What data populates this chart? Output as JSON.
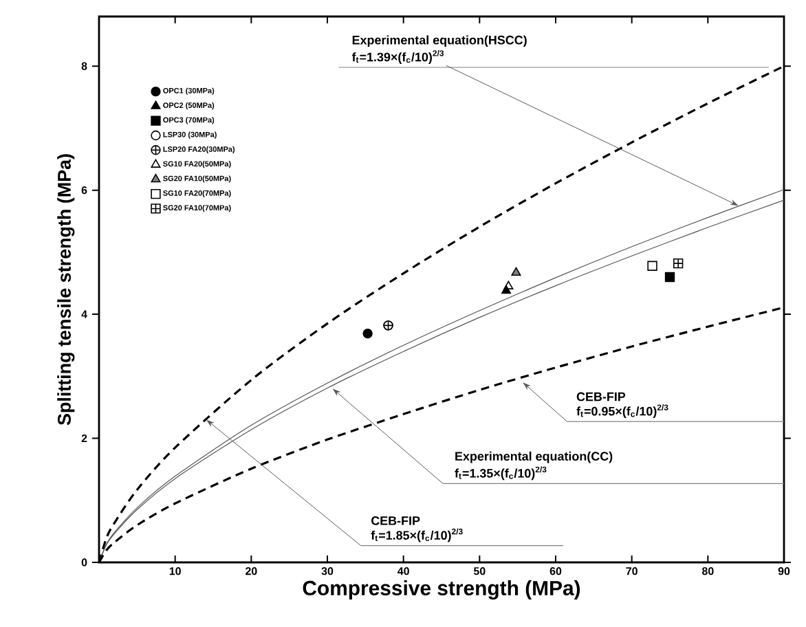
{
  "chart_data": {
    "type": "scatter",
    "xlabel": "Compressive strength (MPa)",
    "ylabel": "Splitting tensile strength (MPa)",
    "xlim": [
      0,
      90
    ],
    "ylim": [
      0,
      8.8
    ],
    "xticks": [
      10,
      20,
      30,
      40,
      50,
      60,
      70,
      80,
      90
    ],
    "yticks": [
      0,
      2,
      4,
      6,
      8
    ],
    "legend": "top left",
    "grid": false,
    "series": [
      {
        "name": "OPC1 (30MPa)",
        "type": "scatter",
        "marker": "circle",
        "color": "#000000",
        "x": [
          35.3
        ],
        "values": [
          3.69
        ]
      },
      {
        "name": "OPC2 (50MPa)",
        "type": "scatter",
        "marker": "triangle",
        "color": "#000000",
        "x": [
          53.5
        ],
        "values": [
          4.38
        ]
      },
      {
        "name": "OPC3 (70MPa)",
        "type": "scatter",
        "marker": "square",
        "color": "#000000",
        "x": [
          75.0
        ],
        "values": [
          4.6
        ]
      },
      {
        "name": "LSP30 (30MPa)",
        "type": "scatter",
        "marker": "circle-open",
        "color": "#000000",
        "x": [
          38.0
        ],
        "values": [
          3.82
        ]
      },
      {
        "name": "LSP20 FA20(30MPa)",
        "type": "scatter",
        "marker": "cross",
        "color": "#000000",
        "x": [
          38.0
        ],
        "values": [
          3.82
        ]
      },
      {
        "name": "SG10 FA20(50MPa)",
        "type": "scatter",
        "marker": "triangle-open",
        "color": "#000000",
        "x": [
          53.8
        ],
        "values": [
          4.45
        ]
      },
      {
        "name": "SG20 FA10(50MPa)",
        "type": "scatter",
        "marker": "triangle-half",
        "color": "#000000",
        "x": [
          54.8
        ],
        "values": [
          4.67
        ]
      },
      {
        "name": "SG10 FA20(70MPa)",
        "type": "scatter",
        "marker": "square-open",
        "color": "#000000",
        "x": [
          72.7
        ],
        "values": [
          4.78
        ]
      },
      {
        "name": "SG20 FA10(70MPa)",
        "type": "scatter",
        "marker": "cross-square",
        "color": "#000000",
        "x": [
          76.1
        ],
        "values": [
          4.82
        ]
      },
      {
        "type": "line",
        "line_style": "dashed",
        "color": "#000000",
        "x": [
          0,
          1,
          2,
          5,
          10,
          20,
          30,
          40,
          50,
          60,
          70,
          80,
          90
        ],
        "values": [
          0,
          0.4,
          0.63,
          1.17,
          1.85,
          2.94,
          3.85,
          4.66,
          5.41,
          6.11,
          6.77,
          7.4,
          8.0
        ]
      },
      {
        "type": "line",
        "line_style": "solid",
        "color": "#555555",
        "x": [
          0,
          1,
          2,
          5,
          10,
          20,
          30,
          40,
          50,
          60,
          70,
          80,
          90
        ],
        "values": [
          0,
          0.3,
          0.48,
          0.88,
          1.39,
          2.21,
          2.89,
          3.5,
          4.06,
          4.59,
          5.09,
          5.56,
          6.01
        ]
      },
      {
        "type": "line",
        "line_style": "solid",
        "color": "#555555",
        "x": [
          0,
          1,
          2,
          5,
          10,
          20,
          30,
          40,
          50,
          60,
          70,
          80,
          90
        ],
        "values": [
          0,
          0.29,
          0.46,
          0.85,
          1.35,
          2.14,
          2.81,
          3.4,
          3.95,
          4.46,
          4.94,
          5.4,
          5.84
        ]
      },
      {
        "type": "line",
        "line_style": "dashed",
        "color": "#000000",
        "x": [
          0,
          1,
          2,
          5,
          10,
          20,
          30,
          40,
          50,
          60,
          70,
          80,
          90
        ],
        "values": [
          0,
          0.2,
          0.32,
          0.6,
          0.95,
          1.51,
          1.98,
          2.39,
          2.78,
          3.14,
          3.48,
          3.8,
          4.11
        ]
      }
    ],
    "annotations": [
      "Experimental equation(HSCC)",
      {
        "text": "f$_{t}$=1.39×(f$_{c}$/10)$^{2/3}$",
        "x": 84,
        "y": 5.75
      },
      "CEB-FIP",
      {
        "text": "f$_{t}$=0.95×(f$_{c}$/10)$^{2/3}$",
        "x": 55.7,
        "y": 2.9
      },
      "Experimental equation(CC)",
      {
        "text": "f$_{t}$=1.35×(f$_{c}$/10)$^{2/3}$",
        "x": 30.7,
        "y": 2.8
      },
      "CEB-FIP",
      {
        "text": "f$_{t}$=1.85×(f$_{c}$/10)$^{2/3}$",
        "x": 14.1,
        "y": 2.3
      }
    ]
  }
}
